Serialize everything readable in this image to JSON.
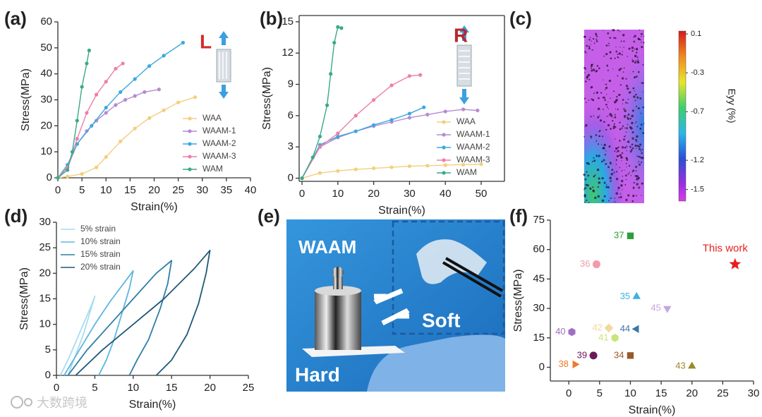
{
  "chart_data": [
    {
      "type": "line",
      "panel": "(a)",
      "xlabel": "Strain(%)",
      "ylabel": "Stress(MPa)",
      "xlim": [
        0,
        40
      ],
      "xticks": [
        0,
        5,
        10,
        15,
        20,
        25,
        30,
        35,
        40
      ],
      "ylim": [
        0,
        60
      ],
      "yticks": [
        0,
        10,
        20,
        30,
        40,
        50,
        60
      ],
      "legend": "lower right",
      "annotation": {
        "text": "L",
        "color": "#d42b2b"
      },
      "series": [
        {
          "name": "WAA",
          "color": "#f2cf7e",
          "x": [
            0,
            2,
            5,
            8,
            10,
            13,
            16,
            19,
            22,
            25,
            28.5
          ],
          "values": [
            0,
            0.5,
            1.5,
            4,
            8,
            14,
            19,
            23,
            26,
            29,
            31
          ]
        },
        {
          "name": "WAAM-1",
          "color": "#b48bd2",
          "x": [
            0,
            2,
            4,
            6,
            8,
            10,
            12,
            14,
            16,
            18,
            21
          ],
          "values": [
            0,
            4,
            13,
            18,
            22,
            25,
            28,
            30,
            31.5,
            33,
            34
          ]
        },
        {
          "name": "WAAM-2",
          "color": "#3aa8e0",
          "x": [
            0,
            2,
            4,
            7,
            10,
            13,
            16,
            19,
            22,
            26
          ],
          "values": [
            0,
            5,
            13,
            20,
            27,
            33,
            38,
            43,
            47,
            52
          ]
        },
        {
          "name": "WAAM-3",
          "color": "#ee7fa7",
          "x": [
            0,
            2,
            4,
            6,
            8,
            10,
            12,
            13.5
          ],
          "values": [
            0,
            4,
            15,
            25,
            32,
            37,
            42,
            44
          ]
        },
        {
          "name": "WAM",
          "color": "#3aa98a",
          "x": [
            0,
            2,
            3,
            4,
            5,
            6,
            6.5
          ],
          "values": [
            0,
            3,
            10,
            22,
            35,
            44,
            49
          ]
        }
      ]
    },
    {
      "type": "line",
      "panel": "(b)",
      "xlabel": "Strain(%)",
      "ylabel": "Stress(MPa)",
      "box": true,
      "xlim": [
        -0.8,
        56.5
      ],
      "xticks": [
        0,
        10,
        20,
        30,
        40,
        50
      ],
      "ylim": [
        -0.3,
        15.6
      ],
      "yticks": [
        0,
        3,
        6,
        9,
        12,
        15
      ],
      "legend": "lower right",
      "annotation": {
        "text": "R",
        "color": "#b8282e"
      },
      "series": [
        {
          "name": "WAA",
          "color": "#f2cf7e",
          "x": [
            0,
            5,
            10,
            15,
            20,
            25,
            30,
            35,
            40,
            45,
            50
          ],
          "values": [
            0,
            0.5,
            0.7,
            0.85,
            0.95,
            1.05,
            1.15,
            1.2,
            1.25,
            1.3,
            1.35
          ]
        },
        {
          "name": "WAAM-1",
          "color": "#b48bd2",
          "x": [
            0,
            5,
            10,
            15,
            20,
            25,
            30,
            35,
            40,
            45,
            49
          ],
          "values": [
            0,
            3,
            3.9,
            4.5,
            5,
            5.4,
            5.8,
            6.1,
            6.4,
            6.6,
            6.5
          ]
        },
        {
          "name": "WAAM-2",
          "color": "#3aa8e0",
          "x": [
            0,
            5,
            10,
            15,
            20,
            25,
            30,
            34
          ],
          "values": [
            0,
            3.2,
            4,
            4.5,
            5.1,
            5.6,
            6.2,
            6.8
          ]
        },
        {
          "name": "WAAM-3",
          "color": "#ee7fa7",
          "x": [
            0,
            5,
            10,
            15,
            20,
            25,
            30,
            33
          ],
          "values": [
            0,
            3,
            4.3,
            6,
            7.5,
            8.9,
            9.8,
            9.9
          ]
        },
        {
          "name": "WAM",
          "color": "#3aa98a",
          "x": [
            0,
            3,
            5,
            7,
            8,
            9,
            10,
            11
          ],
          "values": [
            0,
            2,
            4,
            7,
            10,
            13,
            14.5,
            14.4
          ]
        }
      ]
    },
    {
      "type": "colormap",
      "panel": "(c)",
      "colorbar_label": "Eyy (%)",
      "clim": [
        -1.62,
        0.13
      ],
      "colorbar_ticks": [
        0.1,
        -0.3,
        -0.7,
        -1.2,
        -1.5
      ]
    },
    {
      "type": "line",
      "panel": "(d)",
      "xlabel": "Strain(%)",
      "ylabel": "Stress(MPa)",
      "xlim": [
        0,
        25
      ],
      "xticks": [
        0,
        5,
        10,
        15,
        20,
        25
      ],
      "ylim": [
        0,
        30
      ],
      "yticks": [
        0,
        5,
        10,
        15,
        20,
        25,
        30
      ],
      "legend": "upper left",
      "markers": false,
      "series": [
        {
          "name": "5% strain",
          "color": "#a9dcef",
          "x": [
            0.5,
            1.5,
            2.5,
            3.5,
            4.5,
            5,
            4.5,
            3.5,
            2.5,
            1.5
          ],
          "values": [
            0,
            3,
            6.5,
            10,
            13.5,
            15.5,
            13,
            8,
            4,
            0
          ]
        },
        {
          "name": "10% strain",
          "color": "#5db6df",
          "x": [
            1,
            3,
            5,
            7,
            9,
            10,
            9.5,
            8.5,
            7.5,
            6.5,
            5.5
          ],
          "values": [
            0,
            5,
            10,
            14.5,
            18.5,
            20.5,
            17,
            12,
            7,
            3,
            0
          ]
        },
        {
          "name": "15% strain",
          "color": "#2f7ea6",
          "x": [
            1.5,
            4,
            7,
            10,
            13,
            15,
            14.5,
            13.5,
            12,
            10.5,
            9.5
          ],
          "values": [
            0,
            5,
            10,
            15,
            20,
            22.5,
            18,
            13,
            7,
            3,
            0
          ]
        },
        {
          "name": "20% strain",
          "color": "#1f5877",
          "x": [
            2.5,
            6,
            10,
            14,
            18,
            20,
            19.5,
            18.5,
            17,
            15,
            13
          ],
          "values": [
            0,
            5,
            10,
            15,
            21,
            24.5,
            20,
            14,
            8,
            3,
            0
          ]
        }
      ]
    },
    {
      "type": "scatter",
      "panel": "(f)",
      "xlabel": "Strain(%)",
      "ylabel": "Stress(MPa)",
      "xlim": [
        -3,
        30
      ],
      "xticks": [
        0,
        5,
        10,
        15,
        20,
        25,
        30
      ],
      "ylim": [
        -7,
        75
      ],
      "yticks": [
        0,
        15,
        30,
        45,
        60,
        75
      ],
      "x": [
        10,
        4.5,
        11,
        16,
        6.5,
        11,
        0.5,
        7.5,
        4,
        10,
        1,
        20,
        27
      ],
      "values": [
        67,
        52.5,
        36,
        30,
        20,
        19.5,
        18,
        15,
        6,
        6,
        1.5,
        0.5,
        52.5
      ],
      "labels": [
        "37",
        "36",
        "35",
        "45",
        "42",
        "44",
        "40",
        "41",
        "39",
        "34",
        "38",
        "43",
        "This work"
      ],
      "colors": [
        "#2e9c3a",
        "#f29aab",
        "#3bb1e0",
        "#c6a6df",
        "#f3d89b",
        "#3a77a6",
        "#9f6fc8",
        "#c8e57a",
        "#6a1a58",
        "#98592a",
        "#ef7a2a",
        "#9a8a2a",
        "#e81e1e"
      ],
      "markers": [
        "square",
        "circle",
        "triangle",
        "triangle-down",
        "diamond",
        "triangle-left",
        "hexagon",
        "hexagon",
        "circle",
        "square",
        "triangle-right",
        "triangle",
        "star"
      ]
    }
  ],
  "photo": {
    "panel": "(e)",
    "labels": [
      "WAAM",
      "Soft",
      "Hard"
    ]
  },
  "watermark": "大数跨境"
}
